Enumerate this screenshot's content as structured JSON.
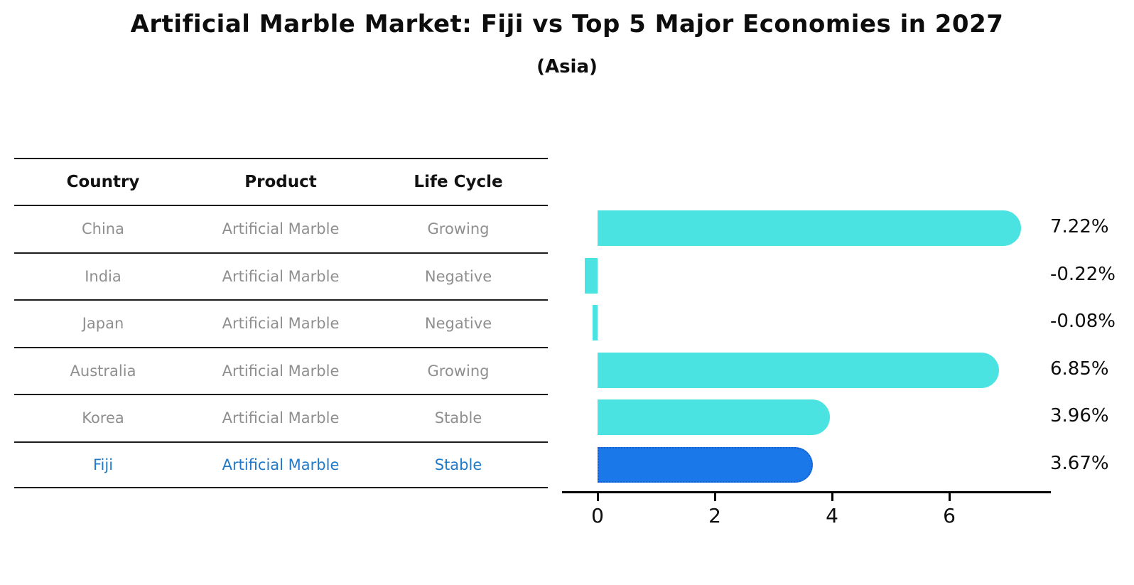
{
  "title": "Artificial Marble Market: Fiji vs Top 5 Major Economies in 2027",
  "subtitle": "(Asia)",
  "table": {
    "headers": [
      "Country",
      "Product",
      "Life Cycle"
    ],
    "rows": [
      {
        "country": "China",
        "product": "Artificial Marble",
        "life_cycle": "Growing",
        "highlight": false
      },
      {
        "country": "India",
        "product": "Artificial Marble",
        "life_cycle": "Negative",
        "highlight": false
      },
      {
        "country": "Japan",
        "product": "Artificial Marble",
        "life_cycle": "Negative",
        "highlight": false
      },
      {
        "country": "Australia",
        "product": "Artificial Marble",
        "life_cycle": "Growing",
        "highlight": false
      },
      {
        "country": "Korea",
        "product": "Artificial Marble",
        "life_cycle": "Stable",
        "highlight": false
      },
      {
        "country": "Fiji",
        "product": "Artificial Marble",
        "life_cycle": "Stable",
        "highlight": true
      }
    ]
  },
  "chart_data": {
    "type": "bar",
    "orientation": "horizontal",
    "title": "Artificial Marble Market: Fiji vs Top 5 Major Economies in 2027",
    "subtitle": "(Asia)",
    "categories": [
      "China",
      "India",
      "Japan",
      "Australia",
      "Korea",
      "Fiji"
    ],
    "values": [
      7.22,
      -0.22,
      -0.08,
      6.85,
      3.96,
      3.67
    ],
    "value_labels": [
      "7.22%",
      "-0.22%",
      "-0.08%",
      "6.85%",
      "3.96%",
      "3.67%"
    ],
    "x_ticks": [
      "0",
      "2",
      "4",
      "6"
    ],
    "x_tick_values": [
      0,
      2,
      4,
      6
    ],
    "xlim": [
      -0.61,
      7.73
    ],
    "grid": false,
    "legend": null,
    "highlight_index": 5,
    "bar_color": "#4ae3e1",
    "highlight_bar_color": "#1b78e8",
    "highlight_border_color": "#1260cf",
    "highlight_text_color": "#217ac9",
    "text_color": "#8f8f8f",
    "axis_color": "#000000"
  }
}
